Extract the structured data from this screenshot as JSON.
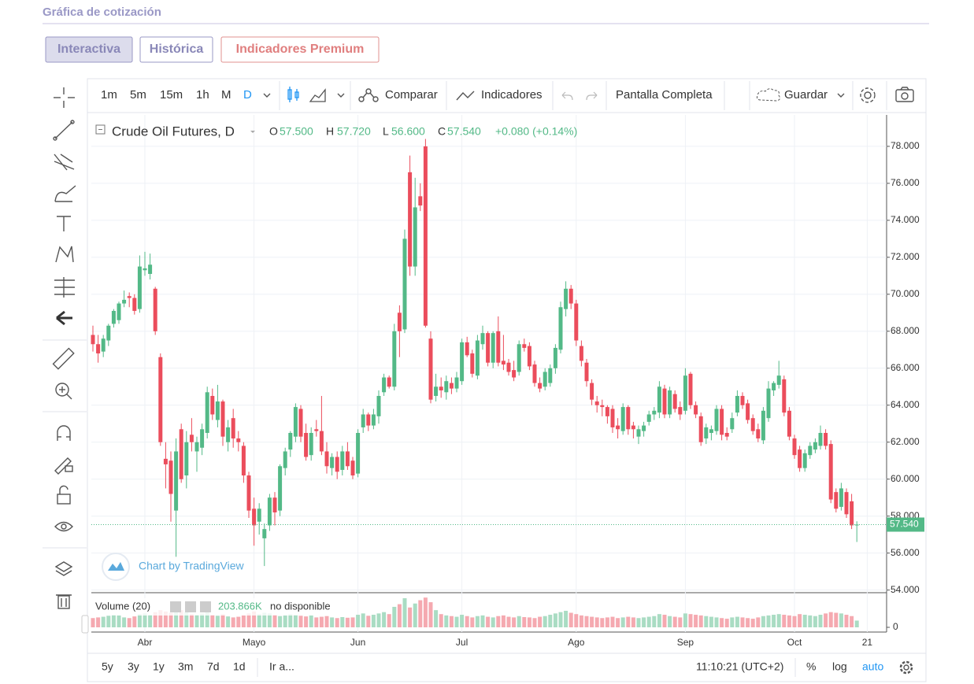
{
  "page": {
    "title": "Gráfica de cotización",
    "tabs": [
      "Interactiva",
      "Histórica",
      "Indicadores Premium"
    ],
    "intervals": [
      "1m",
      "5m",
      "15m",
      "1h",
      "M",
      "D"
    ],
    "compare": "Comparar",
    "indicators": "Indicadores",
    "fullscreen": "Pantalla Completa",
    "save": "Guardar",
    "legend": {
      "symbol": "Crude Oil Futures, D",
      "items": [
        "O",
        "57.500",
        "H",
        "57.720",
        "L",
        "56.600",
        "C",
        "57.540",
        "+0.080 (+0.14%)"
      ]
    },
    "volume_legend": [
      "Volume (20)",
      "203.866K",
      "no disponible"
    ],
    "watermark": "Chart by TradingView",
    "ranges": [
      "5y",
      "3y",
      "1y",
      "3m",
      "7d",
      "1d",
      "Ir a..."
    ],
    "clock": "11:10:21 (UTC+2)",
    "percent": "%",
    "log": "log",
    "auto": "auto"
  },
  "chart_data": {
    "type": "candlestick",
    "up_color": "#53b987",
    "down_color": "#eb4d5c",
    "volume_up_color": "#a9dcc3",
    "volume_down_color": "#f5a9b0",
    "ylim": [
      53.9,
      79.7
    ],
    "yticks": [
      {
        "value": 54,
        "label": "54.000"
      },
      {
        "value": 56,
        "label": "56.000"
      },
      {
        "value": 58,
        "label": "58.000"
      },
      {
        "value": 60,
        "label": "60.000"
      },
      {
        "value": 62,
        "label": "62.000"
      },
      {
        "value": 64,
        "label": "64.000"
      },
      {
        "value": 66,
        "label": "66.000"
      },
      {
        "value": 68,
        "label": "68.000"
      },
      {
        "value": 70,
        "label": "70.000"
      },
      {
        "value": 72,
        "label": "72.000"
      },
      {
        "value": 74,
        "label": "74.000"
      },
      {
        "value": 76,
        "label": "76.000"
      },
      {
        "value": 78,
        "label": "78.000"
      }
    ],
    "last_price": {
      "value": 57.54,
      "label": "57.540"
    },
    "xticks": [
      {
        "value": 10,
        "label": "Abr"
      },
      {
        "value": 31,
        "label": "Mayo"
      },
      {
        "value": 51,
        "label": "Jun"
      },
      {
        "value": 71,
        "label": "Jul"
      },
      {
        "value": 93,
        "label": "Ago"
      },
      {
        "value": 114,
        "label": "Sep"
      },
      {
        "value": 135,
        "label": "Oct"
      },
      {
        "value": 149,
        "label": "21"
      }
    ],
    "grid": true,
    "ohlc": [
      [
        67.8,
        68.3,
        66.9,
        67.3
      ],
      [
        67.3,
        67.8,
        66.3,
        66.8
      ],
      [
        66.9,
        67.8,
        66.6,
        67.6
      ],
      [
        67.5,
        68.4,
        67.2,
        68.3
      ],
      [
        68.4,
        69.2,
        68.2,
        69.1
      ],
      [
        68.6,
        69.6,
        68.4,
        69.5
      ],
      [
        69.5,
        70.2,
        69.3,
        69.7
      ],
      [
        69.9,
        70.1,
        69.3,
        69.8
      ],
      [
        69.8,
        70.0,
        68.9,
        69.1
      ],
      [
        69.2,
        72.1,
        69.0,
        71.5
      ],
      [
        71.3,
        72.3,
        71.0,
        71.4
      ],
      [
        71.1,
        72.2,
        70.8,
        71.6
      ],
      [
        70.3,
        70.4,
        67.8,
        68.0
      ],
      [
        66.6,
        66.8,
        61.8,
        62.0
      ],
      [
        61.1,
        62.0,
        59.5,
        60.8
      ],
      [
        61.0,
        61.5,
        57.7,
        59.2
      ],
      [
        58.3,
        62.2,
        55.8,
        61.5
      ],
      [
        62.7,
        63.0,
        59.8,
        60.0
      ],
      [
        60.2,
        62.6,
        59.5,
        62.0
      ],
      [
        62.4,
        63.3,
        61.5,
        62.0
      ],
      [
        61.5,
        62.3,
        60.4,
        62.0
      ],
      [
        61.7,
        63.0,
        61.3,
        62.7
      ],
      [
        62.5,
        65.0,
        62.2,
        64.7
      ],
      [
        64.5,
        64.9,
        63.2,
        63.5
      ],
      [
        63.2,
        65.1,
        62.8,
        64.2
      ],
      [
        64.2,
        64.3,
        61.8,
        62.3
      ],
      [
        62.0,
        63.2,
        61.5,
        62.8
      ],
      [
        63.3,
        63.8,
        61.7,
        62.2
      ],
      [
        62.2,
        62.6,
        61.5,
        62.0
      ],
      [
        61.8,
        62.0,
        59.8,
        60.2
      ],
      [
        60.2,
        60.4,
        57.9,
        58.3
      ],
      [
        58.4,
        59.0,
        56.4,
        57.5
      ],
      [
        57.7,
        58.7,
        57.0,
        58.4
      ],
      [
        56.8,
        57.6,
        55.3,
        57.3
      ],
      [
        57.5,
        59.2,
        57.2,
        59.0
      ],
      [
        59.0,
        59.3,
        57.5,
        58.2
      ],
      [
        58.3,
        60.8,
        58.0,
        60.7
      ],
      [
        60.6,
        61.7,
        60.2,
        61.5
      ],
      [
        61.6,
        62.6,
        61.2,
        62.5
      ],
      [
        62.3,
        64.1,
        62.0,
        63.9
      ],
      [
        63.8,
        64.0,
        62.0,
        62.3
      ],
      [
        62.5,
        63.0,
        61.0,
        61.2
      ],
      [
        61.3,
        62.8,
        61.0,
        62.5
      ],
      [
        62.7,
        63.2,
        62.3,
        62.6
      ],
      [
        62.6,
        64.5,
        61.3,
        61.5
      ],
      [
        61.5,
        62.0,
        60.3,
        60.7
      ],
      [
        60.6,
        61.4,
        60.2,
        61.2
      ],
      [
        61.2,
        61.5,
        60.0,
        60.4
      ],
      [
        60.5,
        61.8,
        60.2,
        61.5
      ],
      [
        61.5,
        62.0,
        60.5,
        60.7
      ],
      [
        61.0,
        61.2,
        60.0,
        60.2
      ],
      [
        60.3,
        62.7,
        60.1,
        62.5
      ],
      [
        62.8,
        63.8,
        62.5,
        63.5
      ],
      [
        63.5,
        63.6,
        62.6,
        62.9
      ],
      [
        62.9,
        63.8,
        62.7,
        63.5
      ],
      [
        63.4,
        64.8,
        63.0,
        64.5
      ],
      [
        64.7,
        65.7,
        64.5,
        65.5
      ],
      [
        65.5,
        65.6,
        64.9,
        65.0
      ],
      [
        65.0,
        68.4,
        64.8,
        68.0
      ],
      [
        69.0,
        69.4,
        66.6,
        68.0
      ],
      [
        68.1,
        73.5,
        67.9,
        73.0
      ],
      [
        76.6,
        77.5,
        71.0,
        71.5
      ],
      [
        71.5,
        76.3,
        71.0,
        74.7
      ],
      [
        75.3,
        76.0,
        74.5,
        74.8
      ],
      [
        78.0,
        78.4,
        68.2,
        68.3
      ],
      [
        67.6,
        68.0,
        64.1,
        64.3
      ],
      [
        64.5,
        65.7,
        64.2,
        65.0
      ],
      [
        65.0,
        65.5,
        64.4,
        64.8
      ],
      [
        64.7,
        65.6,
        64.3,
        65.3
      ],
      [
        65.2,
        65.5,
        64.6,
        64.9
      ],
      [
        64.9,
        65.8,
        64.7,
        65.5
      ],
      [
        65.3,
        67.6,
        65.1,
        67.4
      ],
      [
        67.4,
        67.7,
        66.6,
        66.7
      ],
      [
        66.8,
        67.0,
        65.5,
        65.7
      ],
      [
        65.6,
        67.8,
        65.4,
        67.5
      ],
      [
        67.3,
        68.3,
        67.0,
        67.9
      ],
      [
        67.9,
        68.0,
        66.1,
        66.3
      ],
      [
        66.3,
        68.0,
        66.0,
        67.9
      ],
      [
        68.0,
        68.8,
        66.1,
        66.3
      ],
      [
        66.4,
        67.8,
        65.9,
        66.2
      ],
      [
        66.3,
        66.5,
        65.6,
        65.8
      ],
      [
        65.9,
        66.4,
        65.3,
        65.5
      ],
      [
        65.8,
        67.5,
        65.6,
        67.3
      ],
      [
        67.3,
        67.6,
        66.9,
        67.1
      ],
      [
        67.2,
        67.4,
        65.9,
        66.1
      ],
      [
        66.2,
        66.4,
        65.0,
        65.2
      ],
      [
        65.2,
        65.5,
        64.7,
        64.9
      ],
      [
        65.0,
        66.0,
        64.8,
        65.8
      ],
      [
        65.2,
        66.2,
        65.0,
        66.0
      ],
      [
        66.0,
        67.3,
        65.7,
        67.1
      ],
      [
        67.0,
        69.6,
        66.8,
        69.3
      ],
      [
        69.2,
        70.7,
        68.8,
        70.3
      ],
      [
        70.3,
        70.5,
        69.2,
        69.5
      ],
      [
        69.5,
        69.7,
        67.2,
        67.5
      ],
      [
        67.2,
        67.5,
        66.1,
        66.4
      ],
      [
        66.3,
        66.5,
        65.0,
        65.3
      ],
      [
        65.2,
        65.4,
        64.0,
        64.3
      ],
      [
        64.2,
        64.5,
        63.6,
        64.0
      ],
      [
        64.0,
        64.3,
        63.4,
        63.9
      ],
      [
        63.9,
        64.0,
        63.0,
        63.4
      ],
      [
        63.8,
        64.0,
        62.5,
        62.8
      ],
      [
        62.9,
        63.3,
        62.2,
        62.7
      ],
      [
        62.6,
        64.1,
        62.4,
        63.9
      ],
      [
        63.9,
        64.0,
        62.4,
        62.7
      ],
      [
        62.9,
        63.1,
        62.2,
        62.7
      ],
      [
        62.3,
        62.9,
        61.9,
        62.7
      ],
      [
        62.6,
        63.1,
        62.3,
        62.9
      ],
      [
        63.1,
        63.7,
        62.9,
        63.5
      ],
      [
        63.5,
        63.9,
        63.2,
        63.7
      ],
      [
        63.6,
        65.3,
        63.3,
        65.0
      ],
      [
        64.9,
        65.1,
        63.3,
        63.5
      ],
      [
        63.5,
        65.0,
        63.3,
        64.8
      ],
      [
        64.6,
        64.8,
        63.6,
        63.8
      ],
      [
        63.9,
        64.2,
        63.2,
        63.5
      ],
      [
        63.7,
        66.0,
        63.5,
        65.6
      ],
      [
        65.7,
        65.8,
        63.8,
        64.0
      ],
      [
        64.0,
        64.2,
        63.3,
        63.5
      ],
      [
        63.4,
        63.6,
        61.8,
        62.0
      ],
      [
        62.2,
        63.0,
        61.9,
        62.8
      ],
      [
        62.5,
        62.9,
        62.1,
        62.7
      ],
      [
        62.6,
        64.0,
        62.4,
        63.8
      ],
      [
        63.8,
        64.0,
        62.1,
        62.4
      ],
      [
        62.5,
        62.8,
        62.1,
        62.3
      ],
      [
        62.7,
        63.6,
        62.5,
        63.3
      ],
      [
        63.6,
        64.8,
        63.4,
        64.5
      ],
      [
        64.5,
        64.7,
        63.8,
        64.0
      ],
      [
        64.1,
        64.3,
        63.0,
        63.2
      ],
      [
        63.3,
        63.5,
        62.4,
        62.6
      ],
      [
        62.7,
        63.0,
        62.0,
        62.2
      ],
      [
        62.1,
        63.9,
        61.9,
        63.7
      ],
      [
        63.3,
        65.3,
        63.1,
        64.9
      ],
      [
        64.8,
        65.3,
        64.5,
        65.2
      ],
      [
        65.1,
        66.4,
        64.9,
        65.6
      ],
      [
        65.4,
        65.6,
        63.4,
        63.6
      ],
      [
        63.7,
        63.9,
        62.1,
        62.3
      ],
      [
        62.2,
        62.4,
        61.1,
        61.3
      ],
      [
        61.6,
        61.8,
        60.4,
        60.6
      ],
      [
        60.6,
        61.6,
        60.4,
        61.4
      ],
      [
        61.3,
        62.0,
        61.1,
        61.8
      ],
      [
        61.6,
        62.2,
        61.4,
        62.0
      ],
      [
        61.8,
        62.9,
        61.6,
        62.5
      ],
      [
        62.5,
        62.7,
        61.6,
        61.8
      ],
      [
        61.9,
        62.1,
        58.7,
        58.9
      ],
      [
        59.3,
        59.5,
        58.2,
        58.4
      ],
      [
        58.5,
        59.8,
        58.3,
        59.5
      ],
      [
        59.3,
        59.5,
        57.9,
        58.1
      ],
      [
        58.8,
        59.2,
        57.3,
        57.5
      ],
      [
        57.5,
        57.72,
        56.6,
        57.54
      ]
    ],
    "volumes": [
      280,
      300,
      320,
      350,
      380,
      360,
      300,
      280,
      330,
      400,
      420,
      380,
      460,
      520,
      480,
      440,
      600,
      520,
      460,
      400,
      380,
      420,
      460,
      380,
      350,
      400,
      330,
      300,
      320,
      360,
      420,
      480,
      400,
      440,
      420,
      380,
      340,
      360,
      400,
      380,
      350,
      330,
      360,
      300,
      320,
      340,
      300,
      280,
      310,
      290,
      300,
      380,
      420,
      350,
      380,
      420,
      460,
      400,
      620,
      700,
      880,
      600,
      720,
      820,
      900,
      760,
      520,
      400,
      360,
      340,
      320,
      380,
      340,
      300,
      340,
      360,
      320,
      300,
      340,
      360,
      320,
      300,
      340,
      310,
      300,
      280,
      320,
      340,
      380,
      420,
      460,
      500,
      440,
      400,
      360,
      340,
      320,
      300,
      280,
      300,
      320,
      280,
      300,
      320,
      300,
      280,
      300,
      320,
      340,
      400,
      380,
      340,
      320,
      300,
      420,
      400,
      380,
      360,
      340,
      320,
      300,
      280,
      260,
      300,
      320,
      300,
      280,
      260,
      300,
      340,
      360,
      380,
      400,
      380,
      360,
      340,
      400,
      380,
      360,
      340,
      380,
      420,
      460,
      440,
      420,
      380,
      340,
      203.866
    ],
    "vlim": [
      0,
      1000
    ],
    "vyticks": [
      0
    ]
  }
}
